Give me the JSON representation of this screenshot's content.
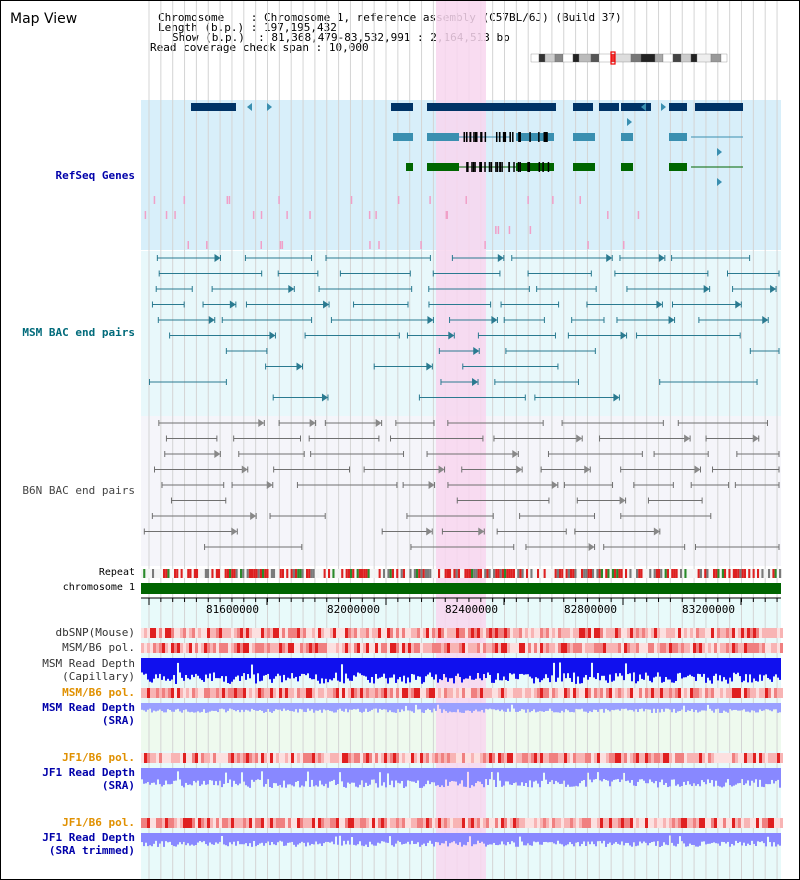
{
  "page_title": "Map View",
  "info": {
    "chromosome_key": "Chromosome   ",
    "chromosome_value": "Chromosome 1, reference assembly (C57BL/6J) (Build 37)",
    "length_key": "Length (b.p.)",
    "length_value": "197,195,432",
    "show_key": "Show (b.p.) ",
    "show_value": "81,368,479-83,532,991 : 2,164,513 bp",
    "span_key": "Read coverage check span",
    "span_value": "10,000",
    "separator": " : "
  },
  "tracks": {
    "refseq": "RefSeq Genes",
    "msm_bac": "MSM BAC end pairs",
    "b6n_bac": "B6N BAC end pairs",
    "repeat": "Repeat",
    "chromosome": "chromosome 1",
    "dbsnp": "dbSNP(Mouse)",
    "msm_b6_pol_1": "MSM/B6 pol.",
    "msm_read_depth_cap_1": "MSM Read Depth",
    "msm_read_depth_cap_2": "(Capillary)",
    "msm_b6_pol_2": "MSM/B6 pol.",
    "msm_read_depth_sra_1": "MSM Read Depth",
    "msm_read_depth_sra_2": "(SRA)",
    "jf1_b6_pol_1": "JF1/B6 pol.",
    "jf1_read_depth_sra_1": "JF1 Read Depth",
    "jf1_read_depth_sra_2": "(SRA)",
    "jf1_b6_pol_2": "JF1/B6 pol.",
    "jf1_read_depth_trim_1": "JF1 Read Depth",
    "jf1_read_depth_trim_2": "(SRA trimmed)"
  },
  "ruler_ticks": [
    "81600000",
    "82000000",
    "82400000",
    "82800000",
    "83200000"
  ],
  "colors": {
    "refseq_bg": "#d8effa",
    "msm_bg": "#e8f8fb",
    "b6n_bg": "#f5f5fa",
    "lower_bg": "#e8fafa",
    "highlight": "#f8d6ee",
    "label_blue": "#0000aa",
    "label_teal": "#006a7a",
    "label_gray": "#444444",
    "label_orange": "#e09000",
    "chromosome_bar": "#006400",
    "gene_dark": "#003366",
    "gene_mid": "#3a8fb0",
    "gene_green": "#006600",
    "msm_line": "#2a7a90",
    "b6n_line": "#707070",
    "depth_blue": "#1010ee",
    "depth_light": "#8888ff"
  }
}
